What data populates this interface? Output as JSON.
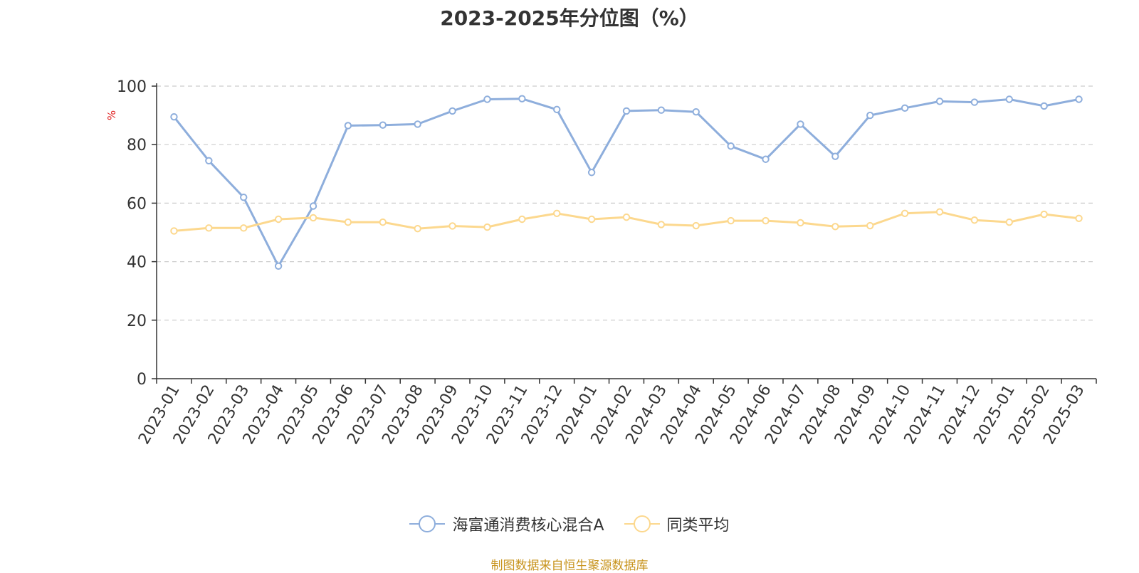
{
  "chart_data": {
    "type": "line",
    "title": "2023-2025年分位图（%）",
    "ylabel": "%",
    "xlabel": "",
    "ylim": [
      0,
      100
    ],
    "yticks": [
      0,
      20,
      40,
      60,
      80,
      100
    ],
    "grid": true,
    "legend_position": "bottom-center",
    "categories": [
      "2023-01",
      "2023-02",
      "2023-03",
      "2023-04",
      "2023-05",
      "2023-06",
      "2023-07",
      "2023-08",
      "2023-09",
      "2023-10",
      "2023-11",
      "2023-12",
      "2024-01",
      "2024-02",
      "2024-03",
      "2024-04",
      "2024-05",
      "2024-06",
      "2024-07",
      "2024-08",
      "2024-09",
      "2024-10",
      "2024-11",
      "2024-12",
      "2025-01",
      "2025-02",
      "2025-03"
    ],
    "series": [
      {
        "name": "海富通消费核心混合A",
        "color": "#8eaedc",
        "values": [
          89.5,
          74.5,
          62,
          38.5,
          59,
          86.5,
          86.7,
          87,
          91.5,
          95.5,
          95.7,
          92,
          70.5,
          91.5,
          91.8,
          91.2,
          79.5,
          75,
          87,
          76,
          90,
          92.5,
          94.8,
          94.5,
          95.5,
          93.2,
          95.5
        ]
      },
      {
        "name": "同类平均",
        "color": "#fcd88e",
        "values": [
          50.5,
          51.5,
          51.5,
          54.5,
          55,
          53.5,
          53.5,
          51.3,
          52.2,
          51.8,
          54.5,
          56.5,
          54.5,
          55.2,
          52.7,
          52.3,
          54,
          54,
          53.3,
          52,
          52.3,
          56.5,
          57,
          54.2,
          53.5,
          56.2,
          54.8
        ]
      }
    ]
  },
  "footer": {
    "source": "制图数据来自恒生聚源数据库"
  }
}
